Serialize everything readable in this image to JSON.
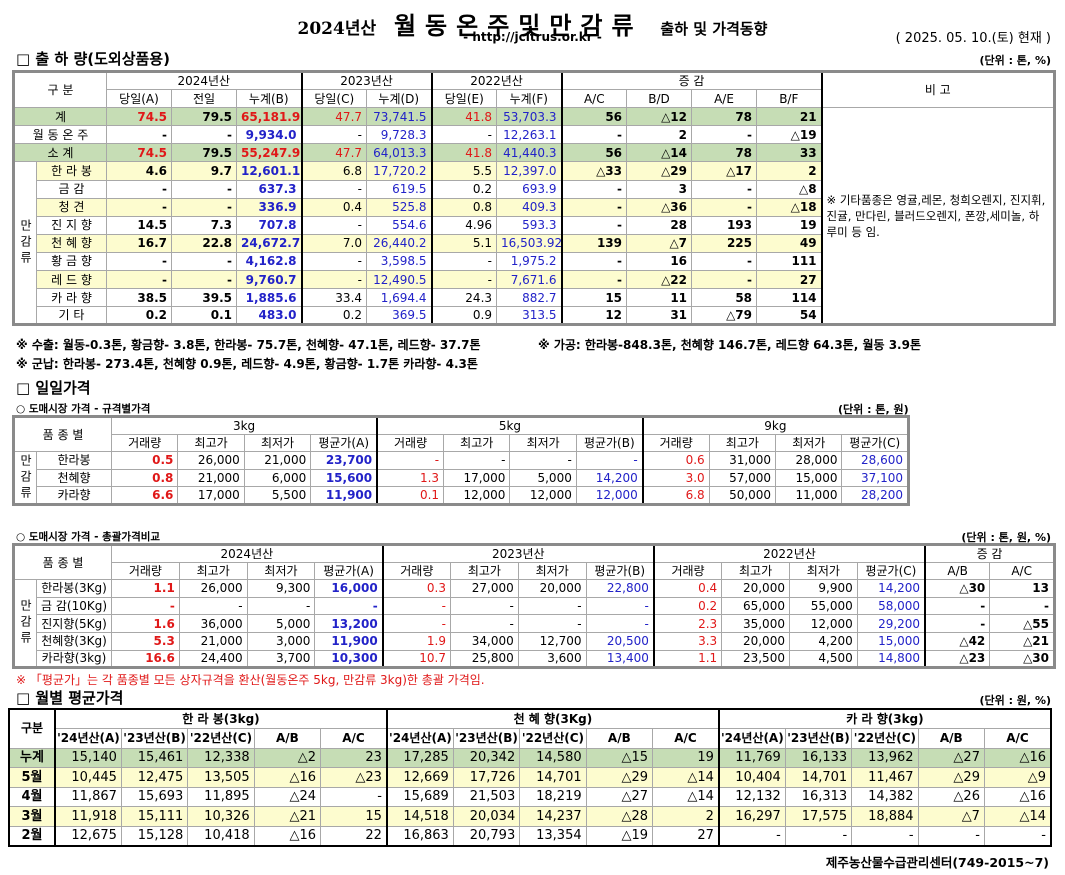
{
  "header": {
    "title_year": "2024년산",
    "title_main": "월동온주및만감류",
    "title_sub": "출하 및 가격동향",
    "url": "- http://jcitrus.or.kr -",
    "as_of": "( 2025. 05. 10.(토) 현재 )"
  },
  "shipment": {
    "heading": "□ 출 하 량(도외상품용)",
    "unit": "(단위 : 톤, %)",
    "head": {
      "category": "구      분",
      "y2024": "2024년산",
      "y2023": "2023년산",
      "y2022": "2022년산",
      "change": "증          감",
      "remark": "비 고",
      "cols": [
        "당일(A)",
        "전일",
        "누계(B)",
        "당일(C)",
        "누계(D)",
        "당일(E)",
        "누계(F)",
        "A/C",
        "B/D",
        "A/E",
        "B/F"
      ]
    },
    "group_label": "만감류",
    "remark_text": "※ 기타품종은 영귤,레몬, 청희오렌지, 진지휘, 진귤, 만다린, 블러드오렌지, 폰깡,세미놀, 하루미 등 임.",
    "rows": [
      {
        "label": "계",
        "type": "total",
        "values": [
          "74.5",
          "79.5",
          "65,181.9",
          "47.7",
          "73,741.5",
          "41.8",
          "53,703.3",
          "56",
          "△12",
          "78",
          "21"
        ]
      },
      {
        "label": "월 동 온 주",
        "type": "plain",
        "values": [
          "-",
          "-",
          "9,934.0",
          "-",
          "9,728.3",
          "-",
          "12,263.1",
          "-",
          "2",
          "-",
          "△19"
        ]
      },
      {
        "label": "소      계",
        "type": "total",
        "values": [
          "74.5",
          "79.5",
          "55,247.9",
          "47.7",
          "64,013.3",
          "41.8",
          "41,440.3",
          "56",
          "△14",
          "78",
          "33"
        ]
      },
      {
        "label": "한 라 봉",
        "type": "yellow",
        "group": true,
        "values": [
          "4.6",
          "9.7",
          "12,601.1",
          "6.8",
          "17,720.2",
          "5.5",
          "12,397.0",
          "△33",
          "△29",
          "△17",
          "2"
        ]
      },
      {
        "label": "금      감",
        "type": "plain",
        "group": true,
        "values": [
          "-",
          "-",
          "637.3",
          "-",
          "619.5",
          "0.2",
          "693.9",
          "-",
          "3",
          "-",
          "△8"
        ]
      },
      {
        "label": "청      견",
        "type": "yellow",
        "group": true,
        "values": [
          "-",
          "-",
          "336.9",
          "0.4",
          "525.8",
          "0.8",
          "409.3",
          "-",
          "△36",
          "-",
          "△18"
        ]
      },
      {
        "label": "진 지 향",
        "type": "plain",
        "group": true,
        "values": [
          "14.5",
          "7.3",
          "707.8",
          "-",
          "554.6",
          "4.96",
          "593.3",
          "-",
          "28",
          "193",
          "19"
        ]
      },
      {
        "label": "천 혜 향",
        "type": "yellow",
        "group": true,
        "values": [
          "16.7",
          "22.8",
          "24,672.7",
          "7.0",
          "26,440.2",
          "5.1",
          "16,503.92",
          "139",
          "△7",
          "225",
          "49"
        ]
      },
      {
        "label": "황 금 향",
        "type": "plain",
        "group": true,
        "values": [
          "-",
          "-",
          "4,162.8",
          "-",
          "3,598.5",
          "-",
          "1,975.2",
          "-",
          "16",
          "-",
          "111"
        ]
      },
      {
        "label": "레 드 향",
        "type": "yellow",
        "group": true,
        "values": [
          "-",
          "-",
          "9,760.7",
          "-",
          "12,490.5",
          "-",
          "7,671.6",
          "-",
          "△22",
          "-",
          "27"
        ]
      },
      {
        "label": "카 라 향",
        "type": "plain",
        "group": true,
        "values": [
          "38.5",
          "39.5",
          "1,885.6",
          "33.4",
          "1,694.4",
          "24.3",
          "882.7",
          "15",
          "11",
          "58",
          "114"
        ]
      },
      {
        "label": "기      타",
        "type": "plain",
        "group": true,
        "values": [
          "0.2",
          "0.1",
          "483.0",
          "0.2",
          "369.5",
          "0.9",
          "313.5",
          "12",
          "31",
          "△79",
          "54"
        ]
      }
    ],
    "note_export": "※ 수출: 월동-0.3톤, 황금향- 3.8톤, 한라봉- 75.7톤, 천혜향- 47.1톤, 레드향- 37.7톤",
    "note_processing": "※ 가공:  한라봉-848.3톤, 천혜향 146.7톤, 레드향 64.3톤, 월동 3.9톤",
    "note_military": "※ 군납: 한라봉- 273.4톤, 천혜향 0.9톤, 레드향- 4.9톤, 황금향- 1.7톤 카라향- 4.3톤"
  },
  "daily": {
    "heading": "□ 일일가격",
    "spec": {
      "subheading": "○ 도매시장 가격 - 규격별가격",
      "unit": "(단위 : 톤, 원)",
      "variety_header": "품 종 별",
      "groups": [
        "3kg",
        "5kg",
        "9kg"
      ],
      "cols": [
        "거래량",
        "최고가",
        "최저가",
        "평균가(A)",
        "거래량",
        "최고가",
        "최저가",
        "평균가(B)",
        "거래량",
        "최고가",
        "최저가",
        "평균가(C)"
      ],
      "group_label": "만감류",
      "rows": [
        {
          "label": "한라봉",
          "values": [
            "0.5",
            "26,000",
            "21,000",
            "23,700",
            "-",
            "-",
            "-",
            "-",
            "0.6",
            "31,000",
            "28,000",
            "28,600"
          ]
        },
        {
          "label": "천혜향",
          "values": [
            "0.8",
            "21,000",
            "6,000",
            "15,600",
            "1.3",
            "17,000",
            "5,000",
            "14,200",
            "3.0",
            "57,000",
            "15,000",
            "37,100"
          ]
        },
        {
          "label": "카라향",
          "values": [
            "6.6",
            "17,000",
            "5,500",
            "11,900",
            "0.1",
            "12,000",
            "12,000",
            "12,000",
            "6.8",
            "50,000",
            "11,000",
            "28,200"
          ]
        }
      ]
    },
    "overall": {
      "subheading": "○ 도매시장 가격 - 총괄가격비교",
      "unit": "(단위 : 톤, 원, %)",
      "variety_header": "품 종 별",
      "groups": [
        "2024년산",
        "2023년산",
        "2022년산",
        "증    감"
      ],
      "cols": [
        "거래량",
        "최고가",
        "최저가",
        "평균가(A)",
        "거래량",
        "최고가",
        "최저가",
        "평균가(B)",
        "거래량",
        "최고가",
        "최저가",
        "평균가(C)",
        "A/B",
        "A/C"
      ],
      "group_label": "만감류",
      "rows": [
        {
          "label": "한라봉(3Kg)",
          "values": [
            "1.1",
            "26,000",
            "9,300",
            "16,000",
            "0.3",
            "27,000",
            "20,000",
            "22,800",
            "0.4",
            "20,000",
            "9,900",
            "14,200",
            "△30",
            "13"
          ]
        },
        {
          "label": "금 감(10Kg)",
          "values": [
            "-",
            "-",
            "-",
            "-",
            "-",
            "-",
            "-",
            "-",
            "0.2",
            "65,000",
            "55,000",
            "58,000",
            "-",
            "-"
          ]
        },
        {
          "label": "진지향(5Kg)",
          "values": [
            "1.6",
            "36,000",
            "5,000",
            "13,200",
            "-",
            "-",
            "-",
            "-",
            "2.3",
            "35,000",
            "12,000",
            "29,200",
            "-",
            "△55"
          ]
        },
        {
          "label": "천혜향(3Kg)",
          "values": [
            "5.3",
            "21,000",
            "3,000",
            "11,900",
            "1.9",
            "34,000",
            "12,700",
            "20,500",
            "3.3",
            "20,000",
            "4,200",
            "15,000",
            "△42",
            "△21"
          ]
        },
        {
          "label": "카라향(3kg)",
          "values": [
            "16.6",
            "24,400",
            "3,700",
            "10,300",
            "10.7",
            "25,800",
            "3,600",
            "13,400",
            "1.1",
            "23,500",
            "4,500",
            "14,800",
            "△23",
            "△30"
          ]
        }
      ],
      "footnote": "※  「평균가」는 각 품종별 모든 상자규격을 환산(월동온주 5kg, 만감류 3kg)한 총괄 가격임."
    }
  },
  "monthly": {
    "heading": "□ 월별 평균가격",
    "unit": "(단위 : 원, %)",
    "category": "구분",
    "groups": [
      "한  라  봉(3kg)",
      "천 혜 향(3Kg)",
      "카 라 향(3kg)"
    ],
    "cols": [
      "'24년산(A)",
      "'23년산(B)",
      "'22년산(C)",
      "A/B",
      "A/C"
    ],
    "rows": [
      {
        "label": "누계",
        "type": "total",
        "values": [
          "15,140",
          "15,461",
          "12,338",
          "△2",
          "23",
          "17,285",
          "20,342",
          "14,580",
          "△15",
          "19",
          "11,769",
          "16,133",
          "13,962",
          "△27",
          "△16"
        ]
      },
      {
        "label": "5월",
        "type": "yellow",
        "values": [
          "10,445",
          "12,475",
          "13,505",
          "△16",
          "△23",
          "12,669",
          "17,726",
          "14,701",
          "△29",
          "△14",
          "10,404",
          "14,701",
          "11,467",
          "△29",
          "△9"
        ]
      },
      {
        "label": "4월",
        "type": "plain",
        "values": [
          "11,867",
          "15,693",
          "11,895",
          "△24",
          "-",
          "15,689",
          "21,503",
          "18,219",
          "△27",
          "△14",
          "12,132",
          "16,313",
          "14,382",
          "△26",
          "△16"
        ]
      },
      {
        "label": "3월",
        "type": "yellow",
        "values": [
          "11,918",
          "15,111",
          "10,326",
          "△21",
          "15",
          "14,518",
          "20,034",
          "14,237",
          "△28",
          "2",
          "16,297",
          "17,575",
          "18,884",
          "△7",
          "△14"
        ]
      },
      {
        "label": "2월",
        "type": "plain",
        "values": [
          "12,675",
          "15,128",
          "10,418",
          "△16",
          "22",
          "16,863",
          "20,793",
          "13,354",
          "△19",
          "27",
          "-",
          "-",
          "-",
          "-",
          "-"
        ]
      }
    ]
  },
  "footer": "제주농산물수급관리센터(749-2015~7)",
  "colors": {
    "total_row": "#c6ddb5",
    "highlight_row": "#fdfccf",
    "red": "#e01818",
    "blue": "#2222c8"
  }
}
